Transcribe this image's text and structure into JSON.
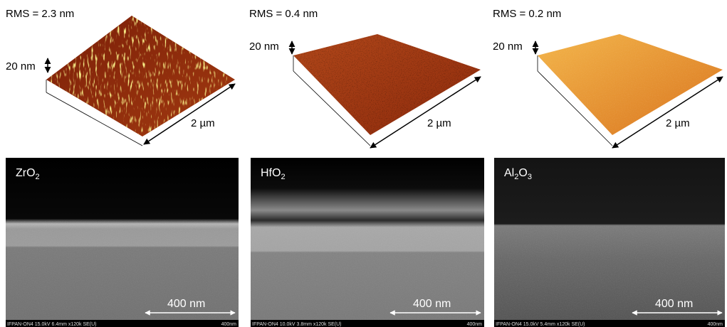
{
  "panels": [
    {
      "rms": "RMS = 2.3 nm",
      "height_label": "20 nm",
      "lateral_label": "2 µm",
      "material": [
        {
          "text": "ZrO"
        },
        {
          "sub": "2"
        }
      ],
      "scale_bar": "400 nm",
      "footer_info": "IFPAN-ON4 15.0kV 6.4mm x120k SE(U)",
      "footer_scale": "400nm"
    },
    {
      "rms": "RMS = 0.4 nm",
      "height_label": "20 nm",
      "lateral_label": "2 µm",
      "material": [
        {
          "text": "HfO"
        },
        {
          "sub": "2"
        }
      ],
      "scale_bar": "400 nm",
      "footer_info": "IFPAN-ON4 10.0kV 3.8mm x120k SE(U)",
      "footer_scale": "400nm"
    },
    {
      "rms": "RMS = 0.2 nm",
      "height_label": "20 nm",
      "lateral_label": "2 µm",
      "material": [
        {
          "text": "Al"
        },
        {
          "sub": "2"
        },
        {
          "text": "O"
        },
        {
          "sub": "3"
        }
      ],
      "scale_bar": "400 nm",
      "footer_info": "IFPAN-ON4 15.0kV 5.4mm x120k SE(U)",
      "footer_scale": "400nm"
    }
  ]
}
